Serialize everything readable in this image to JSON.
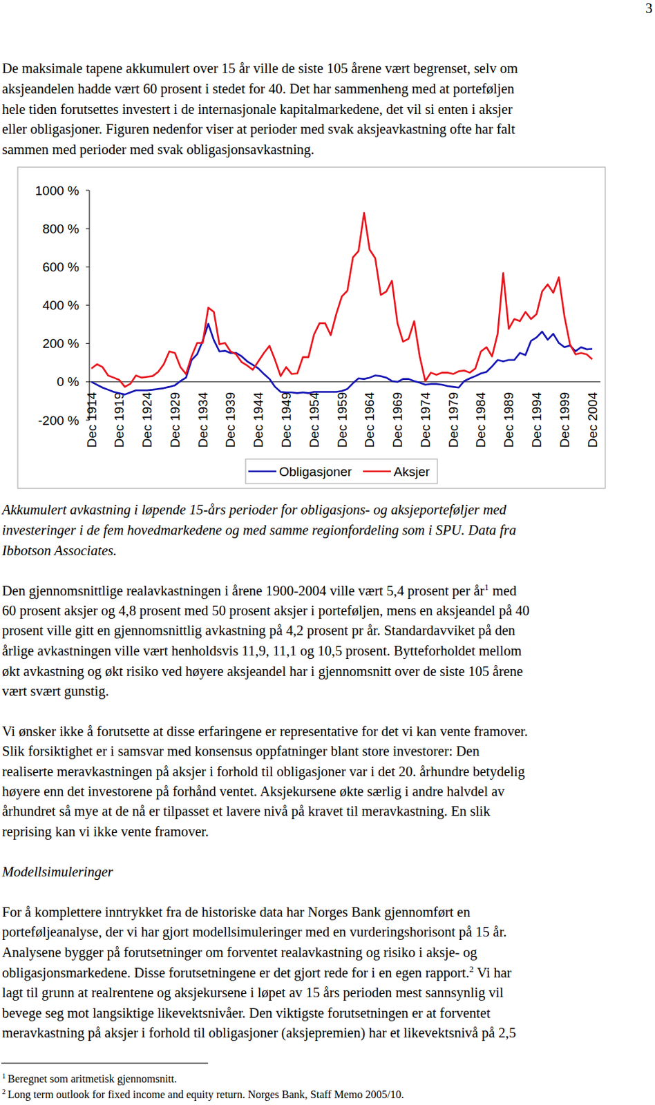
{
  "page": {
    "page_number": "3",
    "paragraphs": [
      [
        "De maksimale tapene akkumulert over 15 år ville de siste 105 årene vært begrenset, selv om",
        "aksjeandelen hadde vært 60 prosent i stedet for 40. Det har sammenheng med at porteføljen",
        "hele tiden forutsettes investert i de internasjonale kapitalmarkedene, det vil si enten i aksjer",
        "eller obligasjoner. Figuren nedenfor viser at perioder med svak aksjeavkastning ofte har falt",
        "sammen med perioder med svak obligasjonsavkastning."
      ],
      [
        [
          "Den gjennomsnittlige realavkastningen i årene 1900-2004 ville vært 5,4 prosent per år",
          {
            "sup": "1"
          },
          " med"
        ],
        "60 prosent aksjer og 4,8 prosent med 50 prosent aksjer i porteføljen, mens en aksjeandel på 40",
        "prosent ville gitt en gjennomsnittlig avkastning på 4,2 prosent pr år. Standardavviket på den",
        "årlige avkastningen ville vært henholdsvis 11,9, 11,1 og 10,5 prosent. Bytteforholdet mellom",
        "økt avkastning og økt risiko ved høyere aksjeandel har i gjennomsnitt over de siste 105 årene",
        "vært svært gunstig."
      ],
      [
        "Vi ønsker ikke å forutsette at disse erfaringene er representative for det vi kan vente framover.",
        "Slik forsiktighet er i samsvar med konsensus oppfatninger blant store investorer: Den",
        "realiserte meravkastningen på aksjer i forhold til obligasjoner var i det 20. århundre betydelig",
        "høyere enn det investorene på forhånd ventet. Aksjekursene økte særlig i andre halvdel av",
        "århundret så mye at de nå er tilpasset et lavere nivå på kravet til meravkastning. En slik",
        "reprising kan vi ikke vente framover."
      ],
      [
        "For å komplettere inntrykket fra de historiske data har Norges Bank gjennomført en",
        "porteføljeanalyse, der vi har gjort modellsimuleringer med en vurderingshorisont på 15 år.",
        "Analysene bygger på forutsetninger om forventet realavkastning og risiko i aksje- og",
        [
          "obligasjonsmarkedene. Disse forutsetningene er det gjort rede for i en egen rapport.",
          {
            "sup": "2"
          },
          " Vi har"
        ],
        "lagt til grunn at realrentene og aksjekursene i løpet av 15 års perioden mest sannsynlig vil",
        "bevege seg mot langsiktige likevektsnivåer. Den viktigste forutsetningen er at forventet",
        "meravkastning på aksjer i forhold til obligasjoner (aksjepremien) har et likevektsnivå på 2,5"
      ]
    ],
    "caption": [
      "Akkumulert avkastning i løpende 15-års perioder for obligasjons- og aksjeporteføljer med",
      "investeringer i de fem hovedmarkedene og med samme regionfordeling som i SPU. Data fra",
      "Ibbotson Associates."
    ],
    "heading": "Modellsimuleringer",
    "footnotes": [
      {
        "marker": "1",
        "text": "Beregnet som aritmetisk gjennomsnitt."
      },
      {
        "marker": "2",
        "text": "Long term outlook for fixed income and equity return. Norges Bank, Staff Memo 2005/10."
      }
    ]
  },
  "chart_data": {
    "type": "line",
    "categories": [
      "Dec 1914",
      null,
      null,
      null,
      null,
      "Dec 1919",
      null,
      null,
      null,
      null,
      "Dec 1924",
      null,
      null,
      null,
      null,
      "Dec 1929",
      null,
      null,
      null,
      null,
      "Dec 1934",
      null,
      null,
      null,
      null,
      "Dec 1939",
      null,
      null,
      null,
      null,
      "Dec 1944",
      null,
      null,
      null,
      null,
      "Dec 1949",
      null,
      null,
      null,
      null,
      "Dec 1954",
      null,
      null,
      null,
      null,
      "Dec 1959",
      null,
      null,
      null,
      null,
      "Dec 1964",
      null,
      null,
      null,
      null,
      "Dec 1969",
      null,
      null,
      null,
      null,
      "Dec 1974",
      null,
      null,
      null,
      null,
      "Dec 1979",
      null,
      null,
      null,
      null,
      "Dec 1984",
      null,
      null,
      null,
      null,
      "Dec 1989",
      null,
      null,
      null,
      null,
      "Dec 1994",
      null,
      null,
      null,
      null,
      "Dec 1999",
      null,
      null,
      null,
      null,
      "Dec 2004"
    ],
    "series": [
      {
        "name": "Obligasjoner",
        "color": "#1414b4",
        "line_style": "solid",
        "marker": "none",
        "values": [
          0,
          -15,
          -30,
          -41,
          -52,
          -59,
          -66,
          -55,
          -44,
          -44,
          -44,
          -41,
          -37,
          -33,
          -26,
          -18,
          4,
          22,
          114,
          144,
          214,
          303,
          218,
          159,
          162,
          151,
          151,
          133,
          107,
          89,
          70,
          41,
          15,
          -26,
          -52,
          -55,
          -55,
          -59,
          -55,
          -59,
          -52,
          -52,
          -52,
          -52,
          -52,
          -48,
          -37,
          -7,
          18,
          15,
          22,
          33,
          30,
          22,
          4,
          0,
          15,
          15,
          4,
          -4,
          -15,
          -11,
          -11,
          -15,
          -22,
          -26,
          -30,
          4,
          18,
          30,
          44,
          52,
          81,
          114,
          107,
          114,
          114,
          151,
          140,
          214,
          232,
          262,
          220,
          251,
          203,
          181,
          190,
          160,
          181,
          170,
          172
        ]
      },
      {
        "name": "Aksjer",
        "color": "#e8141c",
        "line_style": "solid",
        "marker": "none",
        "values": [
          70,
          92,
          77,
          33,
          22,
          10,
          -26,
          -10,
          33,
          22,
          26,
          30,
          52,
          92,
          159,
          151,
          77,
          41,
          133,
          203,
          203,
          387,
          365,
          196,
          203,
          159,
          144,
          103,
          85,
          63,
          107,
          151,
          188,
          114,
          30,
          77,
          41,
          44,
          129,
          129,
          247,
          306,
          306,
          244,
          354,
          446,
          476,
          650,
          683,
          882,
          690,
          646,
          454,
          472,
          528,
          306,
          210,
          225,
          317,
          133,
          4,
          48,
          37,
          48,
          48,
          41,
          55,
          59,
          48,
          70,
          159,
          181,
          133,
          251,
          568,
          277,
          328,
          317,
          365,
          328,
          354,
          472,
          509,
          465,
          546,
          343,
          196,
          144,
          151,
          144,
          118
        ]
      }
    ],
    "ylim": [
      -200,
      1000
    ],
    "yticks": [
      {
        "value": -200,
        "label": "-200 %"
      },
      {
        "value": 0,
        "label": "0 %"
      },
      {
        "value": 200,
        "label": "200 %"
      },
      {
        "value": 400,
        "label": "400 %"
      },
      {
        "value": 600,
        "label": "600 %"
      },
      {
        "value": 800,
        "label": "800 %"
      },
      {
        "value": 1000,
        "label": "1000 %"
      }
    ],
    "grid": false,
    "legend": "bottom"
  }
}
